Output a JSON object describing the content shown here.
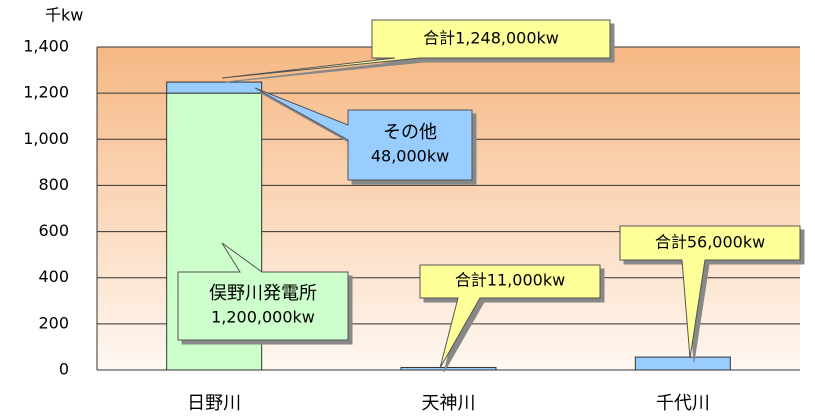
{
  "chart_data": {
    "type": "stacked-bar",
    "y_unit": "千kw",
    "categories": [
      "日野川",
      "天神川",
      "千代川"
    ],
    "series": [
      {
        "color": "#ccffcc",
        "values": [
          1200,
          null,
          null
        ]
      },
      {
        "color": "#99ccff",
        "values": [
          48,
          11,
          56
        ]
      }
    ],
    "ylim": [
      0,
      1400
    ],
    "yticks": [
      0,
      200,
      400,
      600,
      800,
      {
        "value": 1000,
        "label": "1,000"
      },
      {
        "value": 1200,
        "label": "1,200"
      },
      {
        "value": 1400,
        "label": "1,400"
      }
    ],
    "grid": true,
    "annotations": [
      {
        "lines": [
          "合計1,248,000kw"
        ],
        "color": "#ffff99"
      },
      {
        "lines": [
          "その他",
          "48,000kw"
        ],
        "color": "#99ccff"
      },
      {
        "lines": [
          "俣野川発電所",
          "1,200,000kw"
        ],
        "color": "#ccffcc"
      },
      {
        "lines": [
          "合計11,000kw"
        ],
        "color": "#ffff99"
      },
      {
        "lines": [
          "合計56,000kw"
        ],
        "color": "#ffff99"
      }
    ]
  }
}
